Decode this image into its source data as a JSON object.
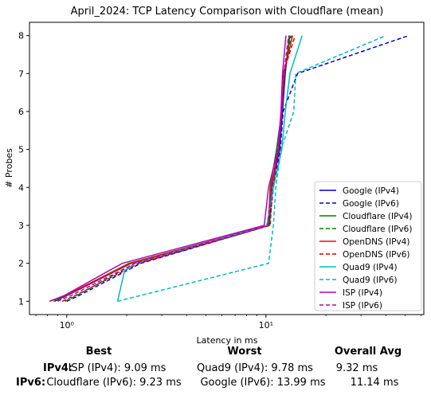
{
  "chart_data": {
    "type": "line",
    "title": "April_2024: TCP Latency Comparison with Cloudflare (mean)",
    "xlabel": "Latency in ms",
    "ylabel": "# Probes",
    "xscale": "log",
    "xlim": [
      0.65,
      62
    ],
    "ylim": [
      0.65,
      8.35
    ],
    "x_ticks": [
      {
        "value": 1,
        "label": "10⁰"
      },
      {
        "value": 10,
        "label": "10¹"
      }
    ],
    "y_ticks": [
      1,
      2,
      3,
      4,
      5,
      6,
      7,
      8
    ],
    "grid": false,
    "legend_position": "lower-right",
    "series": [
      {
        "name": "Google (IPv4)",
        "color": "#0000cc",
        "dash": "solid",
        "points": [
          [
            0.87,
            1
          ],
          [
            1.0,
            1.15
          ],
          [
            2.1,
            2.0
          ],
          [
            10.3,
            3.0
          ],
          [
            10.7,
            4.0
          ],
          [
            11.7,
            5.0
          ],
          [
            12.1,
            6.0
          ],
          [
            12.5,
            7.0
          ],
          [
            13.1,
            8.0
          ]
        ]
      },
      {
        "name": "Google (IPv6)",
        "color": "#0000cc",
        "dash": "dashed",
        "points": [
          [
            1.0,
            1
          ],
          [
            1.15,
            1.15
          ],
          [
            2.35,
            2.0
          ],
          [
            10.4,
            3.0
          ],
          [
            10.9,
            4.0
          ],
          [
            11.8,
            5.0
          ],
          [
            12.2,
            6.0
          ],
          [
            14.4,
            7.0
          ],
          [
            52.0,
            8.0
          ]
        ]
      },
      {
        "name": "Cloudflare (IPv4)",
        "color": "#008000",
        "dash": "solid",
        "points": [
          [
            0.86,
            1
          ],
          [
            0.99,
            1.15
          ],
          [
            2.05,
            2.0
          ],
          [
            10.3,
            3.0
          ],
          [
            10.5,
            4.0
          ],
          [
            11.3,
            5.0
          ],
          [
            12.0,
            6.0
          ],
          [
            12.4,
            7.0
          ],
          [
            13.2,
            8.0
          ]
        ]
      },
      {
        "name": "Cloudflare (IPv6)",
        "color": "#008000",
        "dash": "dashed",
        "points": [
          [
            0.98,
            1
          ],
          [
            1.12,
            1.15
          ],
          [
            2.2,
            2.0
          ],
          [
            10.4,
            3.0
          ],
          [
            10.7,
            4.0
          ],
          [
            11.4,
            5.0
          ],
          [
            12.0,
            6.0
          ],
          [
            12.3,
            7.0
          ],
          [
            13.4,
            8.0
          ]
        ]
      },
      {
        "name": "OpenDNS (IPv4)",
        "color": "#ff0000",
        "dash": "solid",
        "points": [
          [
            0.82,
            1
          ],
          [
            0.98,
            1.15
          ],
          [
            2.1,
            2.0
          ],
          [
            10.2,
            3.0
          ],
          [
            10.6,
            4.0
          ],
          [
            11.6,
            5.0
          ],
          [
            12.0,
            6.0
          ],
          [
            12.3,
            7.0
          ],
          [
            13.6,
            8.0
          ]
        ]
      },
      {
        "name": "OpenDNS (IPv6)",
        "color": "#cc0000",
        "dash": "dashed",
        "points": [
          [
            0.95,
            1
          ],
          [
            1.1,
            1.15
          ],
          [
            2.3,
            2.0
          ],
          [
            10.5,
            3.0
          ],
          [
            10.8,
            4.0
          ],
          [
            11.5,
            5.0
          ],
          [
            11.9,
            6.0
          ],
          [
            12.2,
            7.0
          ],
          [
            14.0,
            8.0
          ]
        ]
      },
      {
        "name": "Quad9 (IPv4)",
        "color": "#00bbbb",
        "dash": "solid",
        "points": [
          [
            1.8,
            1
          ],
          [
            1.95,
            1.8
          ],
          [
            2.2,
            2.0
          ],
          [
            10.1,
            3.0
          ],
          [
            10.9,
            4.0
          ],
          [
            12.0,
            5.0
          ],
          [
            12.5,
            6.0
          ],
          [
            13.2,
            7.0
          ],
          [
            15.2,
            8.0
          ]
        ]
      },
      {
        "name": "Quad9 (IPv6)",
        "color": "#00bbbb",
        "dash": "dashed",
        "points": [
          [
            1.8,
            1
          ],
          [
            10.3,
            2.0
          ],
          [
            10.9,
            3.0
          ],
          [
            11.2,
            4.0
          ],
          [
            11.9,
            5.0
          ],
          [
            13.8,
            6.0
          ],
          [
            14.1,
            7.0
          ],
          [
            40.0,
            8.0
          ]
        ]
      },
      {
        "name": "ISP (IPv4)",
        "color": "#bb00bb",
        "dash": "solid",
        "points": [
          [
            0.82,
            1
          ],
          [
            0.97,
            1.15
          ],
          [
            1.9,
            2.0
          ],
          [
            9.8,
            3.0
          ],
          [
            10.3,
            4.0
          ],
          [
            11.5,
            5.0
          ],
          [
            11.9,
            6.0
          ],
          [
            12.1,
            7.0
          ],
          [
            12.6,
            8.0
          ]
        ]
      },
      {
        "name": "ISP (IPv6)",
        "color": "#bb00bb",
        "dash": "dashed",
        "points": [
          [
            0.9,
            1
          ],
          [
            1.05,
            1.15
          ],
          [
            2.2,
            2.0
          ],
          [
            10.2,
            3.0
          ],
          [
            10.7,
            4.0
          ],
          [
            11.6,
            5.0
          ],
          [
            12.0,
            6.0
          ],
          [
            12.3,
            7.0
          ],
          [
            13.0,
            8.0
          ]
        ]
      }
    ]
  },
  "summary": {
    "headers": {
      "best": "Best",
      "worst": "Worst",
      "overall": "Overall Avg"
    },
    "ipv4": {
      "label": "IPv4:",
      "best": "ISP (IPv4): 9.09 ms",
      "worst": "Quad9 (IPv4): 9.78 ms",
      "overall": "9.32 ms"
    },
    "ipv6": {
      "label": "IPv6:",
      "best": "Cloudflare (IPv6): 9.23 ms",
      "worst": "Google (IPv6): 13.99 ms",
      "overall": "11.14 ms"
    }
  }
}
